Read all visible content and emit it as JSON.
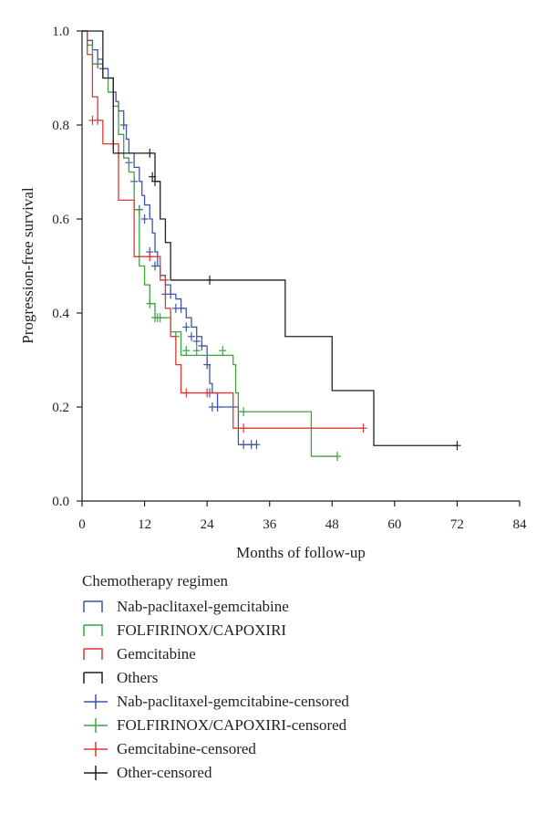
{
  "chart_data": {
    "type": "line",
    "subtype": "kaplan-meier step curves",
    "xlabel": "Months of follow-up",
    "ylabel": "Progression-free survival",
    "xlim": [
      0,
      84
    ],
    "ylim": [
      0,
      1.0
    ],
    "xticks": [
      "0",
      "12",
      "24",
      "36",
      "48",
      "60",
      "72",
      "84"
    ],
    "yticks": [
      "0.0",
      "0.2",
      "0.4",
      "0.6",
      "0.8",
      "1.0"
    ],
    "xtick_values": [
      0,
      12,
      24,
      36,
      48,
      60,
      72,
      84
    ],
    "ytick_values": [
      0,
      0.2,
      0.4,
      0.6,
      0.8,
      1.0
    ],
    "grid": false,
    "legend_position": "bottom",
    "legend_title": "Chemotherapy regimen",
    "series": [
      {
        "name": "Nab-paclitaxel-gemcitabine",
        "color": "#3f56a6",
        "steps": [
          [
            0,
            1.0
          ],
          [
            1,
            0.98
          ],
          [
            2,
            0.96
          ],
          [
            3,
            0.94
          ],
          [
            4,
            0.92
          ],
          [
            5,
            0.9
          ],
          [
            6,
            0.87
          ],
          [
            6.5,
            0.85
          ],
          [
            7,
            0.83
          ],
          [
            8,
            0.8
          ],
          [
            8.5,
            0.77
          ],
          [
            9,
            0.74
          ],
          [
            10,
            0.71
          ],
          [
            11,
            0.68
          ],
          [
            11.5,
            0.65
          ],
          [
            12,
            0.63
          ],
          [
            13,
            0.6
          ],
          [
            13.5,
            0.57
          ],
          [
            14,
            0.53
          ],
          [
            14.5,
            0.5
          ],
          [
            15,
            0.48
          ],
          [
            16,
            0.46
          ],
          [
            17,
            0.44
          ],
          [
            18,
            0.43
          ],
          [
            19,
            0.41
          ],
          [
            20,
            0.39
          ],
          [
            21,
            0.37
          ],
          [
            22,
            0.35
          ],
          [
            23,
            0.33
          ],
          [
            24,
            0.29
          ],
          [
            24.5,
            0.25
          ],
          [
            25,
            0.23
          ],
          [
            26,
            0.2
          ],
          [
            28,
            0.2
          ],
          [
            29,
            0.2
          ],
          [
            30,
            0.12
          ],
          [
            33.5,
            0.12
          ]
        ],
        "censored": [
          [
            3,
            0.93
          ],
          [
            4,
            0.92
          ],
          [
            8,
            0.8
          ],
          [
            9,
            0.72
          ],
          [
            10,
            0.68
          ],
          [
            11,
            0.62
          ],
          [
            12,
            0.6
          ],
          [
            13,
            0.53
          ],
          [
            14,
            0.5
          ],
          [
            16,
            0.44
          ],
          [
            17,
            0.44
          ],
          [
            18,
            0.41
          ],
          [
            19,
            0.41
          ],
          [
            20,
            0.37
          ],
          [
            21,
            0.35
          ],
          [
            22,
            0.34
          ],
          [
            23,
            0.33
          ],
          [
            24,
            0.29
          ],
          [
            24.5,
            0.23
          ],
          [
            25,
            0.2
          ],
          [
            26,
            0.2
          ],
          [
            31,
            0.12
          ],
          [
            32.5,
            0.12
          ],
          [
            33.5,
            0.12
          ]
        ]
      },
      {
        "name": "FOLFIRINOX/CAPOXIRI",
        "color": "#3fa044",
        "steps": [
          [
            0,
            1.0
          ],
          [
            1,
            0.97
          ],
          [
            2,
            0.93
          ],
          [
            4,
            0.9
          ],
          [
            5,
            0.87
          ],
          [
            6,
            0.84
          ],
          [
            7,
            0.78
          ],
          [
            8,
            0.73
          ],
          [
            9,
            0.7
          ],
          [
            10,
            0.62
          ],
          [
            11,
            0.5
          ],
          [
            12,
            0.46
          ],
          [
            13,
            0.42
          ],
          [
            14,
            0.39
          ],
          [
            17,
            0.36
          ],
          [
            19,
            0.31
          ],
          [
            28,
            0.31
          ],
          [
            29,
            0.29
          ],
          [
            29.5,
            0.23
          ],
          [
            30,
            0.19
          ],
          [
            43,
            0.19
          ],
          [
            44,
            0.095
          ],
          [
            49,
            0.095
          ]
        ],
        "censored": [
          [
            7,
            0.74
          ],
          [
            13,
            0.42
          ],
          [
            14,
            0.39
          ],
          [
            14.5,
            0.39
          ],
          [
            15,
            0.39
          ],
          [
            18,
            0.35
          ],
          [
            20,
            0.32
          ],
          [
            22,
            0.32
          ],
          [
            27,
            0.32
          ],
          [
            31,
            0.19
          ],
          [
            49,
            0.095
          ]
        ]
      },
      {
        "name": "Gemcitabine",
        "color": "#d93a35",
        "steps": [
          [
            0,
            1.0
          ],
          [
            1,
            0.95
          ],
          [
            2,
            0.86
          ],
          [
            3,
            0.81
          ],
          [
            4,
            0.76
          ],
          [
            5,
            0.76
          ],
          [
            7,
            0.64
          ],
          [
            9,
            0.64
          ],
          [
            10,
            0.52
          ],
          [
            12,
            0.52
          ],
          [
            14,
            0.52
          ],
          [
            15,
            0.47
          ],
          [
            16,
            0.41
          ],
          [
            17,
            0.35
          ],
          [
            18,
            0.29
          ],
          [
            19,
            0.23
          ],
          [
            25,
            0.23
          ],
          [
            27,
            0.23
          ],
          [
            29,
            0.155
          ],
          [
            54,
            0.155
          ]
        ],
        "censored": [
          [
            2,
            0.81
          ],
          [
            3,
            0.81
          ],
          [
            6,
            0.76
          ],
          [
            13,
            0.52
          ],
          [
            16,
            0.47
          ],
          [
            20,
            0.23
          ],
          [
            24,
            0.23
          ],
          [
            31,
            0.155
          ],
          [
            54,
            0.155
          ]
        ]
      },
      {
        "name": "Others",
        "color": "#231f20",
        "steps": [
          [
            0,
            1.0
          ],
          [
            4,
            0.9
          ],
          [
            6,
            0.74
          ],
          [
            13,
            0.74
          ],
          [
            14,
            0.68
          ],
          [
            15,
            0.6
          ],
          [
            16,
            0.55
          ],
          [
            17,
            0.47
          ],
          [
            38,
            0.47
          ],
          [
            39,
            0.35
          ],
          [
            47,
            0.35
          ],
          [
            48,
            0.235
          ],
          [
            55,
            0.235
          ],
          [
            56,
            0.118
          ],
          [
            72,
            0.118
          ]
        ],
        "censored": [
          [
            13,
            0.74
          ],
          [
            13.5,
            0.69
          ],
          [
            14,
            0.68
          ],
          [
            24.5,
            0.47
          ],
          [
            72,
            0.118
          ]
        ]
      }
    ],
    "legend_entries": [
      {
        "label": "Nab-paclitaxel-gemcitabine",
        "color": "#3f56a6",
        "symbol": "step"
      },
      {
        "label": "FOLFIRINOX/CAPOXIRI",
        "color": "#3fa044",
        "symbol": "step"
      },
      {
        "label": "Gemcitabine",
        "color": "#d93a35",
        "symbol": "step"
      },
      {
        "label": "Others",
        "color": "#231f20",
        "symbol": "step"
      },
      {
        "label": "Nab-paclitaxel-gemcitabine-censored",
        "color": "#3f56a6",
        "symbol": "cross"
      },
      {
        "label": "FOLFIRINOX/CAPOXIRI-censored",
        "color": "#3fa044",
        "symbol": "cross"
      },
      {
        "label": "Gemcitabine-censored",
        "color": "#d93a35",
        "symbol": "cross"
      },
      {
        "label": "Other-censored",
        "color": "#231f20",
        "symbol": "cross"
      }
    ]
  }
}
